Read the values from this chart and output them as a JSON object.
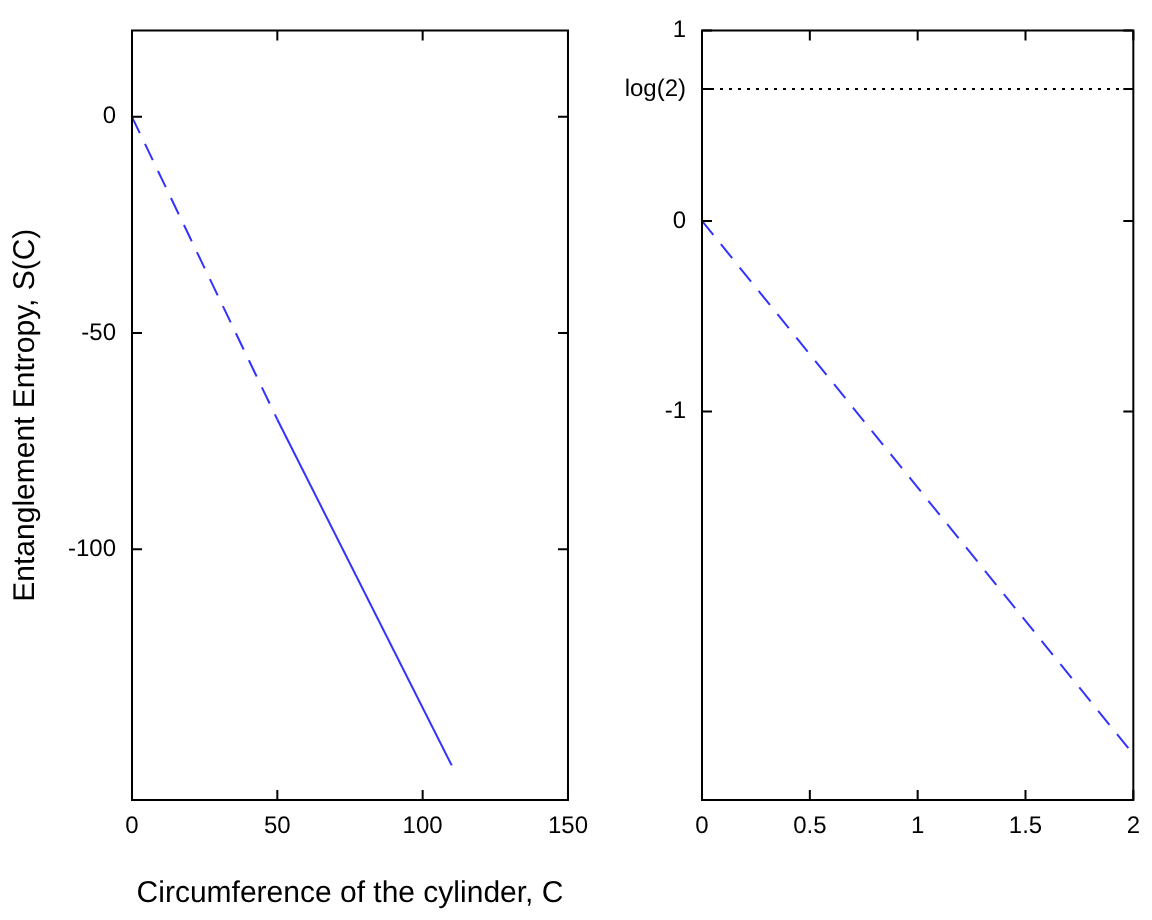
{
  "chart_data": [
    {
      "type": "line",
      "xlabel": "Circumference of the cylinder, C",
      "ylabel": "Entanglement Entropy, S(C)",
      "xlim": [
        0,
        150
      ],
      "xticks": [
        0,
        50,
        100,
        150
      ],
      "ylim": [
        -158,
        20
      ],
      "yticks": [
        0,
        -50,
        -100
      ],
      "grid": false,
      "marker": "none",
      "series": [
        {
          "color": "#3333ff",
          "line_style": "dashed",
          "x": [
            0,
            50
          ],
          "values": [
            0,
            -70
          ]
        },
        {
          "color": "#3333ff",
          "line_style": "solid",
          "x": [
            50,
            110
          ],
          "values": [
            -70,
            -150
          ]
        }
      ]
    },
    {
      "type": "line",
      "xlim": [
        0,
        2
      ],
      "xticks": [
        0,
        0.5,
        1,
        1.5,
        2
      ],
      "ylim": [
        -3.04,
        1
      ],
      "yticks": [
        1,
        {
          "value": 0.693,
          "label": "log(2)"
        },
        0,
        -1
      ],
      "grid": false,
      "marker": "none",
      "ref_lines": [
        {
          "axis": "y",
          "value": 0.693,
          "color": "#000000",
          "line_style": "dotted"
        }
      ],
      "series": [
        {
          "color": "#3333ff",
          "line_style": "dashed",
          "x": [
            0,
            2
          ],
          "values": [
            0,
            -2.8
          ]
        }
      ]
    }
  ]
}
